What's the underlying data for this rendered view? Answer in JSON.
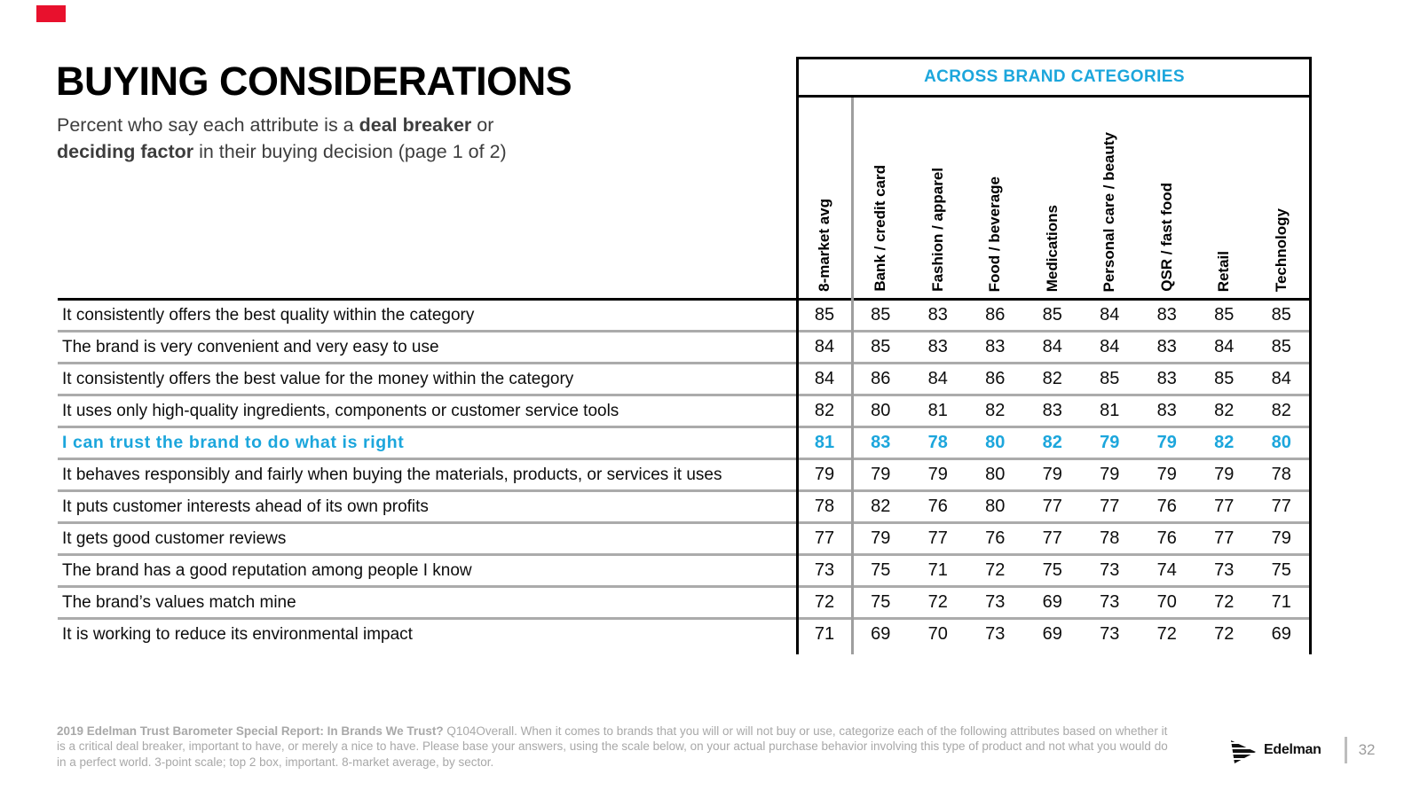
{
  "slide": {
    "title": "BUYING CONSIDERATIONS",
    "subtitle": {
      "line1_normal": "Percent who say each attribute is a ",
      "line1_bold": "deal breaker",
      "line1_tail": " or",
      "line2_bold": "deciding factor",
      "line2_tail": " in their buying decision (page 1 of 2)"
    },
    "accent_color": "#E8112D",
    "highlight_color": "#1CA6DC"
  },
  "chart_data": {
    "type": "table",
    "title": "ACROSS BRAND CATEGORIES",
    "columns": [
      "8-market avg",
      "Bank / credit card",
      "Fashion / apparel",
      "Food / beverage",
      "Medications",
      "Personal care / beauty",
      "QSR / fast food",
      "Retail",
      "Technology"
    ],
    "rows": [
      {
        "label": "It consistently offers the best quality within the category",
        "values": [
          85,
          85,
          83,
          86,
          85,
          84,
          83,
          85,
          85
        ],
        "highlight": false
      },
      {
        "label": "The brand is very convenient and very easy to use",
        "values": [
          84,
          85,
          83,
          83,
          84,
          84,
          83,
          84,
          85
        ],
        "highlight": false
      },
      {
        "label": "It consistently offers the best value for the money within the category",
        "values": [
          84,
          86,
          84,
          86,
          82,
          85,
          83,
          85,
          84
        ],
        "highlight": false
      },
      {
        "label": "It uses only high-quality ingredients, components or customer service tools",
        "values": [
          82,
          80,
          81,
          82,
          83,
          81,
          83,
          82,
          82
        ],
        "highlight": false
      },
      {
        "label": "I can trust the brand to do what is right",
        "values": [
          81,
          83,
          78,
          80,
          82,
          79,
          79,
          82,
          80
        ],
        "highlight": true
      },
      {
        "label": "It behaves responsibly and fairly when buying the materials, products, or services it uses",
        "values": [
          79,
          79,
          79,
          80,
          79,
          79,
          79,
          79,
          78
        ],
        "highlight": false
      },
      {
        "label": "It puts customer interests ahead of its own profits",
        "values": [
          78,
          82,
          76,
          80,
          77,
          77,
          76,
          77,
          77
        ],
        "highlight": false
      },
      {
        "label": "It gets good customer reviews",
        "values": [
          77,
          79,
          77,
          76,
          77,
          78,
          76,
          77,
          79
        ],
        "highlight": false
      },
      {
        "label": "The brand has a good reputation among people I know",
        "values": [
          73,
          75,
          71,
          72,
          75,
          73,
          74,
          73,
          75
        ],
        "highlight": false
      },
      {
        "label": "The brand’s values match mine",
        "values": [
          72,
          75,
          72,
          73,
          69,
          73,
          70,
          72,
          71
        ],
        "highlight": false
      },
      {
        "label": "It is working to reduce its environmental impact",
        "values": [
          71,
          69,
          70,
          73,
          69,
          73,
          72,
          72,
          69
        ],
        "highlight": false
      }
    ]
  },
  "footer": {
    "bold": "2019 Edelman Trust Barometer Special Report: In Brands We Trust?",
    "text": " Q104Overall. When it comes to brands that you will or will not buy or use, categorize each of the following attributes based on whether it is a critical deal breaker, important to have, or merely a nice to have. Please base your answers, using the scale below, on your actual purchase behavior involving this type of product and not what you would do in a perfect world. 3-point scale; top 2 box, important. 8-market average, by sector."
  },
  "branding": {
    "logo_text": "Edelman",
    "page_number": "32"
  }
}
